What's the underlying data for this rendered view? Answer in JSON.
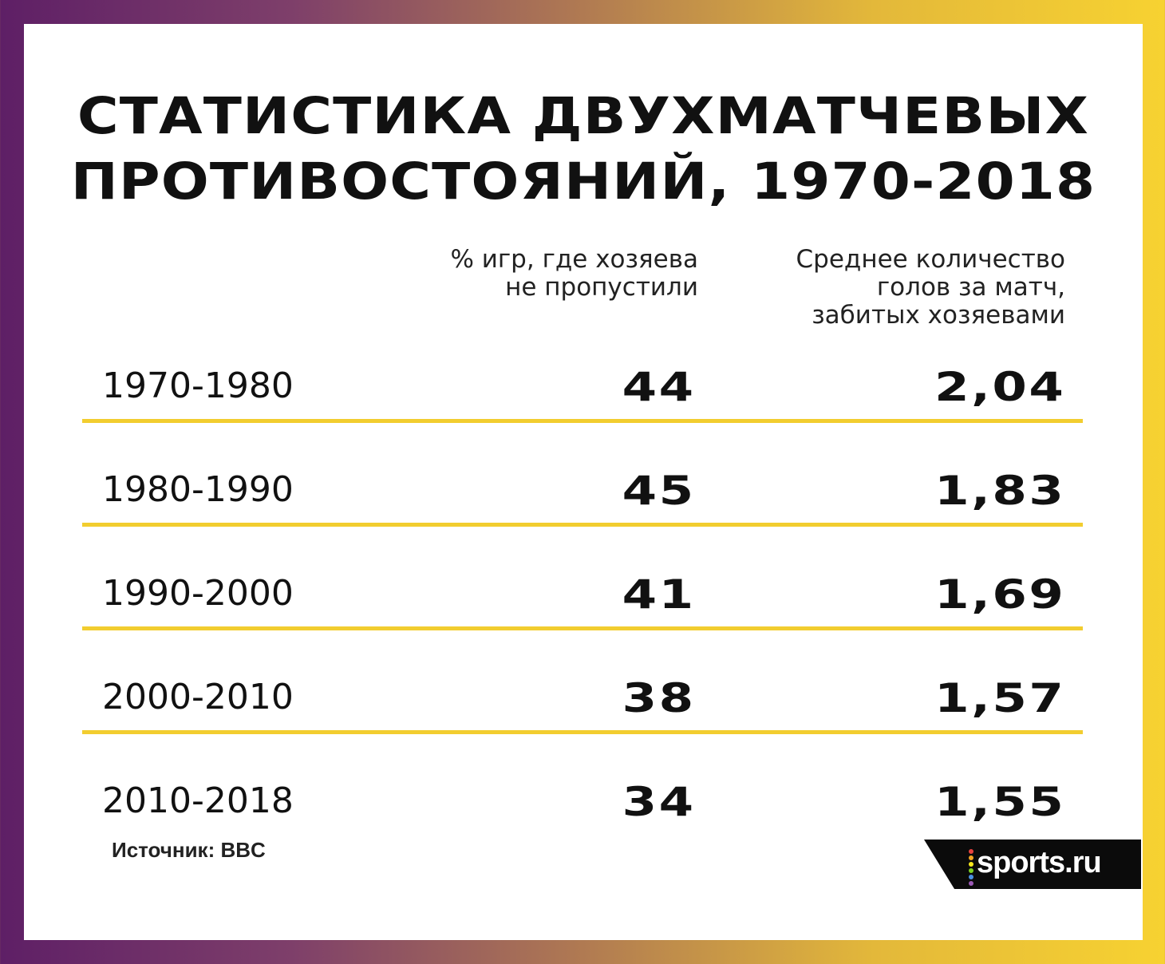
{
  "colors": {
    "accent_line": "#f2cd2f",
    "background_gradient_start": "#5e1f66",
    "background_gradient_end": "#f7d231",
    "text": "#111111"
  },
  "title_lines": [
    "СТАТИСТИКА ДВУХМАТЧЕВЫХ",
    "ПРОТИВОСТОЯНИЙ, 1970-2018"
  ],
  "columns": {
    "clean_sheet_lines": [
      "% игр, где хозяева",
      "не пропустили"
    ],
    "avg_goals_lines": [
      "Среднее количество",
      "голов за матч,",
      "забитых хозяевами"
    ]
  },
  "chart_data": {
    "type": "table",
    "title": "СТАТИСТИКА ДВУХМАТЧЕВЫХ ПРОТИВОСТОЯНИЙ, 1970-2018",
    "columns": [
      "",
      "% игр, где хозяева не пропустили",
      "Среднее количество голов за матч, забитых хозяевами"
    ],
    "rows": [
      {
        "period": "1970-1980",
        "clean_sheet": "44",
        "avg_goals": "2,04"
      },
      {
        "period": "1980-1990",
        "clean_sheet": "45",
        "avg_goals": "1,83"
      },
      {
        "period": "1990-2000",
        "clean_sheet": "41",
        "avg_goals": "1,69"
      },
      {
        "period": "2000-2010",
        "clean_sheet": "38",
        "avg_goals": "1,57"
      },
      {
        "period": "2010-2018",
        "clean_sheet": "34",
        "avg_goals": "1,55"
      }
    ]
  },
  "source": "Источник: BBC",
  "logo": {
    "text": "sports.ru",
    "dot_colors": [
      "#e8423f",
      "#f5a623",
      "#f8e71c",
      "#7ed321",
      "#4a90e2",
      "#9b59b6"
    ]
  }
}
